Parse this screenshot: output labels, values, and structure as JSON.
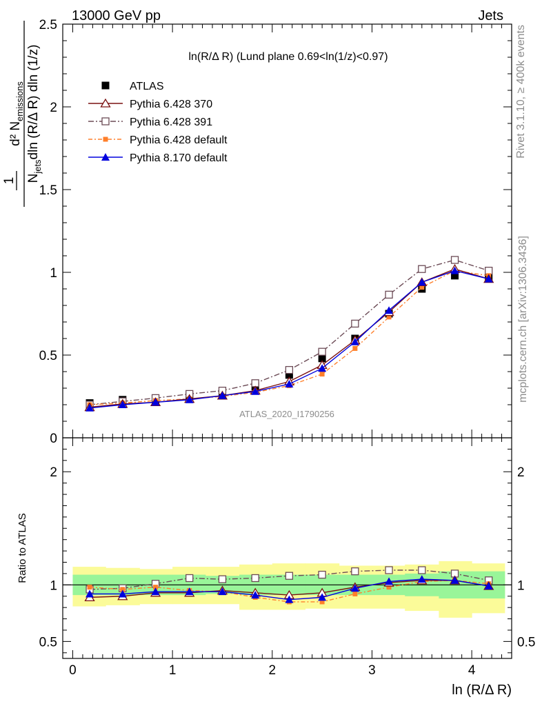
{
  "header": {
    "left": "13000 GeV pp",
    "right": "Jets"
  },
  "side_labels": {
    "rivet": "Rivet 3.1.10, ≥ 400k events",
    "mcplots": "mcplots.cern.ch [arXiv:1306.3436]"
  },
  "chart_data": [
    {
      "type": "line",
      "title": "ln(R/Δ R) (Lund plane 0.69<ln(1/z)<0.97)",
      "watermark": "ATLAS_2020_I1790256",
      "ylabel": "1/N_jets d²N_emissions / dln(R/ΔR) dln(1/z)",
      "xlim": [
        -0.1,
        4.4
      ],
      "ylim": [
        0,
        2.5
      ],
      "yticks": [
        0,
        0.5,
        1,
        1.5,
        2,
        2.5
      ],
      "ytick_labels": [
        "0",
        "0.5",
        "1",
        "1.5",
        "2",
        "2.5"
      ],
      "legend_position": "top-left",
      "x": [
        0.17,
        0.5,
        0.83,
        1.17,
        1.5,
        1.83,
        2.17,
        2.5,
        2.83,
        3.17,
        3.5,
        3.83,
        4.17
      ],
      "series": [
        {
          "name": "ATLAS",
          "color": "#000000",
          "marker": "square-filled",
          "values": [
            0.21,
            0.23,
            0.23,
            0.25,
            0.27,
            0.31,
            0.38,
            0.48,
            0.6,
            0.75,
            0.9,
            0.98,
            0.97
          ]
        },
        {
          "name": "Pythia 6.428 370",
          "color": "#7a1010",
          "marker": "triangle-open",
          "values": [
            0.185,
            0.205,
            0.215,
            0.235,
            0.255,
            0.285,
            0.34,
            0.44,
            0.59,
            0.76,
            0.94,
            1.02,
            0.96
          ]
        },
        {
          "name": "Pythia 6.428 391",
          "color": "#6b4a55",
          "marker": "square-open",
          "values": [
            0.2,
            0.22,
            0.24,
            0.265,
            0.285,
            0.33,
            0.41,
            0.52,
            0.69,
            0.865,
            1.02,
            1.075,
            1.01
          ]
        },
        {
          "name": "Pythia 6.428 default",
          "color": "#ff7f2a",
          "marker": "square-small",
          "values": [
            0.2,
            0.21,
            0.225,
            0.235,
            0.25,
            0.275,
            0.315,
            0.385,
            0.54,
            0.73,
            0.91,
            1.01,
            0.98
          ]
        },
        {
          "name": "Pythia 8.170 default",
          "color": "#0000dd",
          "marker": "triangle-filled",
          "values": [
            0.18,
            0.2,
            0.215,
            0.23,
            0.255,
            0.28,
            0.325,
            0.42,
            0.58,
            0.77,
            0.94,
            1.01,
            0.96
          ]
        }
      ]
    },
    {
      "type": "line",
      "xlabel": "ln (R/Δ R)",
      "ylabel": "Ratio to ATLAS",
      "xlim": [
        -0.1,
        4.4
      ],
      "ylim": [
        0.35,
        2.3
      ],
      "xticks": [
        0,
        1,
        2,
        3,
        4
      ],
      "xtick_labels": [
        "0",
        "1",
        "2",
        "3",
        "4"
      ],
      "yticks": [
        0.5,
        1,
        2
      ],
      "ytick_labels": [
        "0.5",
        "1",
        "2"
      ],
      "reference_line": 1,
      "bands": {
        "x_edges": [
          0,
          0.33,
          0.67,
          1.0,
          1.33,
          1.67,
          2.0,
          2.33,
          2.67,
          3.0,
          3.33,
          3.67,
          4.0,
          4.33
        ],
        "inner": {
          "color": "#99f599",
          "low": [
            0.91,
            0.91,
            0.91,
            0.91,
            0.92,
            0.91,
            0.91,
            0.91,
            0.91,
            0.91,
            0.9,
            0.88,
            0.88
          ],
          "high": [
            1.09,
            1.09,
            1.09,
            1.09,
            1.08,
            1.09,
            1.09,
            1.09,
            1.09,
            1.09,
            1.1,
            1.12,
            1.12
          ]
        },
        "outer": {
          "color": "#fbfb99",
          "low": [
            0.81,
            0.82,
            0.83,
            0.83,
            0.83,
            0.78,
            0.78,
            0.79,
            0.79,
            0.79,
            0.77,
            0.71,
            0.75
          ],
          "high": [
            1.16,
            1.15,
            1.14,
            1.16,
            1.16,
            1.18,
            1.19,
            1.19,
            1.17,
            1.17,
            1.18,
            1.21,
            1.19
          ]
        }
      },
      "series": [
        {
          "name": "Pythia 6.428 370",
          "values": [
            0.89,
            0.9,
            0.93,
            0.93,
            0.95,
            0.93,
            0.91,
            0.93,
            0.98,
            1.02,
            1.04,
            1.04,
            0.99
          ]
        },
        {
          "name": "Pythia 6.428 391",
          "values": [
            0.96,
            0.97,
            1.01,
            1.06,
            1.05,
            1.06,
            1.08,
            1.09,
            1.12,
            1.13,
            1.13,
            1.1,
            1.04
          ]
        },
        {
          "name": "Pythia 6.428 default",
          "values": [
            0.98,
            0.96,
            0.98,
            0.95,
            0.94,
            0.89,
            0.85,
            0.85,
            0.92,
            0.98,
            1.03,
            1.04,
            1.01
          ]
        },
        {
          "name": "Pythia 8.170 default",
          "values": [
            0.92,
            0.92,
            0.94,
            0.94,
            0.94,
            0.91,
            0.87,
            0.89,
            0.97,
            1.03,
            1.05,
            1.04,
            0.99
          ]
        }
      ]
    }
  ]
}
